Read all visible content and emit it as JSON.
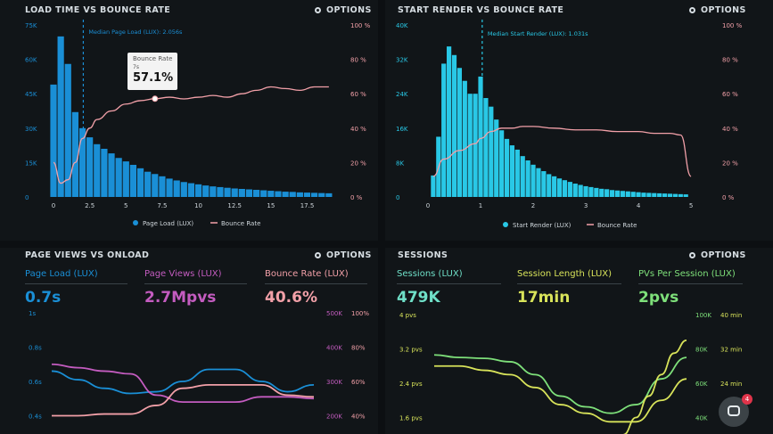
{
  "panels": {
    "load_time": {
      "title": "LOAD TIME VS BOUNCE RATE",
      "options": "OPTIONS",
      "median_label": "Median Page Load (LUX): 2.056s",
      "tooltip": {
        "title": "Bounce Rate",
        "sub": "7s",
        "value": "57.1%"
      },
      "legend": [
        "Page Load (LUX)",
        "Bounce Rate"
      ]
    },
    "start_render": {
      "title": "START RENDER VS BOUNCE RATE",
      "options": "OPTIONS",
      "median_label": "Median Start Render (LUX): 1.031s",
      "legend": [
        "Start Render (LUX)",
        "Bounce Rate"
      ]
    },
    "page_views": {
      "title": "PAGE VIEWS VS ONLOAD",
      "options": "OPTIONS",
      "metrics": [
        {
          "label": "Page Load (LUX)",
          "value": "0.7s"
        },
        {
          "label": "Page Views (LUX)",
          "value": "2.7Mpvs"
        },
        {
          "label": "Bounce Rate (LUX)",
          "value": "40.6%"
        }
      ]
    },
    "sessions": {
      "title": "SESSIONS",
      "options": "OPTIONS",
      "metrics": [
        {
          "label": "Sessions (LUX)",
          "value": "479K"
        },
        {
          "label": "Session Length (LUX)",
          "value": "17min"
        },
        {
          "label": "PVs Per Session (LUX)",
          "value": "2pvs"
        }
      ]
    },
    "chat": {
      "badge": "4"
    }
  },
  "colors": {
    "blue": "#1a8fd6",
    "cyan": "#29c8e6",
    "pink": "#f2a0a8",
    "magenta": "#c45cc0",
    "green": "#7ee07a",
    "yellow": "#d8e35a",
    "teal": "#6fe0c8"
  },
  "chart_data": [
    {
      "type": "bar",
      "title": "LOAD TIME VS BOUNCE RATE",
      "x_ticks": [
        "0",
        "2.5",
        "5",
        "7.5",
        "10",
        "12.5",
        "15",
        "17.5"
      ],
      "y_ticks": [
        "0",
        "15K",
        "30K",
        "45K",
        "60K",
        "75K"
      ],
      "y2_ticks": [
        "0 %",
        "20 %",
        "40 %",
        "60 %",
        "80 %",
        "100 %"
      ],
      "ylim": [
        0,
        75000
      ],
      "y2lim": [
        0,
        100
      ],
      "median_x": 2.056,
      "series": [
        {
          "name": "Page Load (LUX)",
          "x": [
            0,
            0.5,
            1,
            1.5,
            2,
            2.5,
            3,
            3.5,
            4,
            4.5,
            5,
            5.5,
            6,
            6.5,
            7,
            7.5,
            8,
            8.5,
            9,
            9.5,
            10,
            10.5,
            11,
            11.5,
            12,
            12.5,
            13,
            13.5,
            14,
            14.5,
            15,
            15.5,
            16,
            16.5,
            17,
            17.5,
            18,
            18.5,
            19
          ],
          "values": [
            49000,
            70000,
            58000,
            37000,
            30000,
            26000,
            23000,
            21000,
            19000,
            17000,
            15500,
            14000,
            12500,
            11000,
            10000,
            9000,
            8000,
            7200,
            6500,
            6000,
            5500,
            5000,
            4600,
            4300,
            4000,
            3700,
            3500,
            3300,
            3100,
            2900,
            2700,
            2500,
            2300,
            2200,
            2000,
            1900,
            1800,
            1700,
            1600
          ]
        },
        {
          "name": "Bounce Rate",
          "x": [
            0,
            0.5,
            1,
            1.5,
            2,
            2.5,
            3,
            4,
            5,
            6,
            7,
            8,
            9,
            10,
            11,
            12,
            13,
            14,
            15,
            16,
            17,
            18,
            19
          ],
          "values": [
            20,
            8,
            10,
            20,
            34,
            40,
            45,
            50,
            54,
            56,
            57.1,
            58,
            57,
            58,
            59,
            58,
            60,
            62,
            64,
            63,
            62,
            64,
            64
          ]
        }
      ]
    },
    {
      "type": "bar",
      "title": "START RENDER VS BOUNCE RATE",
      "x_ticks": [
        "0",
        "1",
        "2",
        "3",
        "4",
        "5"
      ],
      "y_ticks": [
        "0",
        "8K",
        "16K",
        "24K",
        "32K",
        "40K"
      ],
      "y2_ticks": [
        "0 %",
        "20 %",
        "40 %",
        "60 %",
        "80 %",
        "100 %"
      ],
      "ylim": [
        0,
        40000
      ],
      "y2lim": [
        0,
        100
      ],
      "median_x": 1.031,
      "series": [
        {
          "name": "Start Render (LUX)",
          "x": [
            0.1,
            0.2,
            0.3,
            0.4,
            0.5,
            0.6,
            0.7,
            0.8,
            0.9,
            1.0,
            1.1,
            1.2,
            1.3,
            1.4,
            1.5,
            1.6,
            1.7,
            1.8,
            1.9,
            2.0,
            2.1,
            2.2,
            2.3,
            2.4,
            2.5,
            2.6,
            2.7,
            2.8,
            2.9,
            3.0,
            3.1,
            3.2,
            3.3,
            3.4,
            3.5,
            3.6,
            3.7,
            3.8,
            3.9,
            4.0,
            4.1,
            4.2,
            4.3,
            4.4,
            4.5,
            4.6,
            4.7,
            4.8,
            4.9
          ],
          "values": [
            5000,
            14000,
            31000,
            35000,
            33000,
            30000,
            27000,
            24000,
            24000,
            28000,
            23000,
            21000,
            18000,
            15500,
            13500,
            12000,
            11000,
            9500,
            8500,
            7500,
            6700,
            6000,
            5300,
            4800,
            4300,
            3900,
            3500,
            3100,
            2800,
            2500,
            2300,
            2100,
            1900,
            1800,
            1600,
            1500,
            1400,
            1300,
            1200,
            1100,
            1000,
            950,
            900,
            850,
            800,
            750,
            700,
            650,
            600
          ]
        },
        {
          "name": "Bounce Rate",
          "x": [
            0.1,
            0.3,
            0.6,
            0.9,
            1.0,
            1.2,
            1.4,
            1.6,
            1.8,
            2.0,
            2.4,
            2.8,
            3.2,
            3.6,
            4.0,
            4.3,
            4.6,
            4.8,
            5.0
          ],
          "values": [
            12,
            22,
            27,
            31,
            34,
            38,
            40,
            40,
            41,
            41,
            40,
            39,
            39,
            38,
            38,
            37,
            37,
            36,
            12
          ]
        }
      ]
    },
    {
      "type": "line",
      "title": "PAGE VIEWS VS ONLOAD",
      "y_ticks": [
        "1s",
        "0.8s",
        "0.6s",
        "0.4s"
      ],
      "y2_ticks": [
        "500K",
        "400K",
        "300K",
        "200K"
      ],
      "y3_ticks": [
        "100%",
        "80%",
        "60%",
        "40%"
      ],
      "series": [
        {
          "name": "Page Load (LUX)",
          "x": [
            0,
            1,
            2,
            3,
            4,
            5,
            6,
            7,
            8,
            9,
            10
          ],
          "values": [
            0.66,
            0.61,
            0.56,
            0.53,
            0.54,
            0.6,
            0.67,
            0.67,
            0.6,
            0.54,
            0.58
          ]
        },
        {
          "name": "Page Views (LUX)",
          "x": [
            0,
            1,
            2,
            3,
            4,
            5,
            6,
            7,
            8,
            9,
            10
          ],
          "values": [
            350,
            340,
            330,
            322,
            260,
            240,
            240,
            240,
            255,
            255,
            250
          ]
        },
        {
          "name": "Bounce Rate (LUX)",
          "x": [
            0,
            1,
            2,
            3,
            4,
            5,
            6,
            7,
            8,
            9,
            10
          ],
          "values": [
            40,
            40,
            41,
            41,
            46,
            56,
            58,
            58,
            58,
            52,
            51
          ]
        }
      ]
    },
    {
      "type": "line",
      "title": "SESSIONS",
      "y_ticks": [
        "4 pvs",
        "3.2 pvs",
        "2.4 pvs",
        "1.6 pvs"
      ],
      "y2_ticks": [
        "100K",
        "80K",
        "60K",
        "40K"
      ],
      "y3_ticks": [
        "40 min",
        "32 min",
        "24 min",
        "16 min"
      ],
      "series": [
        {
          "name": "Sessions (LUX)",
          "x": [
            0,
            1,
            2,
            3,
            4,
            5,
            6,
            7,
            8,
            9,
            10
          ],
          "values": [
            3.06,
            3.0,
            2.98,
            2.9,
            2.6,
            2.1,
            1.85,
            1.7,
            1.9,
            2.5,
            3.0
          ]
        },
        {
          "name": "Session Length (LUX)",
          "x": [
            0,
            1,
            2,
            3,
            4,
            5,
            6,
            7,
            8,
            9,
            10
          ],
          "values": [
            28,
            28,
            27,
            26,
            23,
            19,
            17,
            15,
            15,
            20,
            25
          ]
        },
        {
          "name": "PVs Per Session (LUX)",
          "x": [
            7.5,
            8,
            8.5,
            9,
            9.5,
            10
          ],
          "values": [
            1.2,
            1.6,
            2.1,
            2.6,
            3.1,
            3.4
          ]
        }
      ]
    }
  ]
}
